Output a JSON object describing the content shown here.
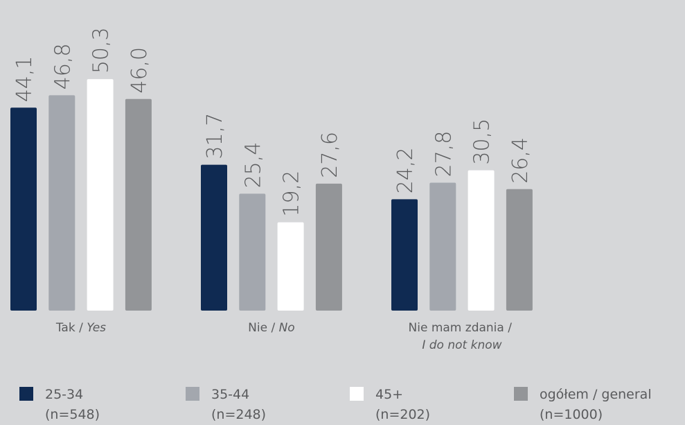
{
  "chart_data": {
    "type": "bar",
    "categories": [
      [
        "Tak / ",
        "Yes"
      ],
      [
        "Nie / ",
        "No"
      ],
      [
        "Nie mam zdania / ",
        "I do not know"
      ]
    ],
    "series": [
      {
        "name": "25-34",
        "sample": "(n=548)",
        "color": "#0f2a52",
        "values": [
          44.1,
          31.7,
          24.2
        ],
        "value_labels": [
          "44,1",
          "31,7",
          "24,2"
        ]
      },
      {
        "name": "35-44",
        "sample": "(n=248)",
        "color": "#a3a7ae",
        "values": [
          46.8,
          25.4,
          27.8
        ],
        "value_labels": [
          "46,8",
          "25,4",
          "27,8"
        ]
      },
      {
        "name": "45+",
        "sample": "(n=202)",
        "color": "#ffffff",
        "values": [
          50.3,
          19.2,
          30.5
        ],
        "value_labels": [
          "50,3",
          "19,2",
          "30,5"
        ]
      },
      {
        "name": "ogółem / general",
        "sample": "(n=1000)",
        "color": "#939598",
        "values": [
          46.0,
          27.6,
          26.4
        ],
        "value_labels": [
          "46,0",
          "27,6",
          "26,4"
        ]
      }
    ],
    "ylim": [
      0,
      67.5
    ],
    "grid": false,
    "legend": "bottom"
  }
}
